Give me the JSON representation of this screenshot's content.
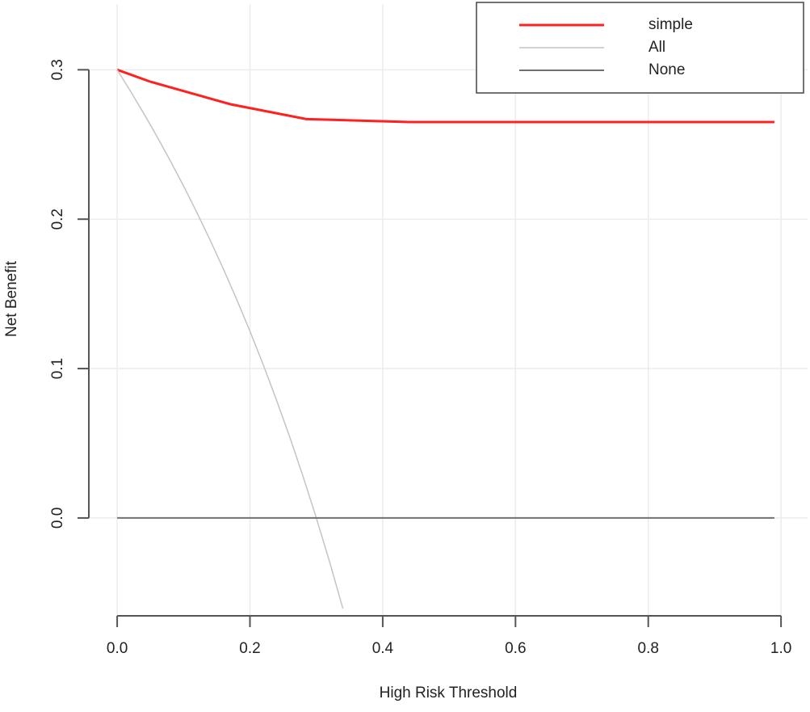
{
  "chart_data": {
    "type": "line",
    "xlabel": "High Risk Threshold",
    "ylabel": "Net Benefit",
    "xlim": [
      -0.05,
      1.04
    ],
    "ylim": [
      -0.0655,
      0.344
    ],
    "xticks": [
      {
        "value": 0,
        "label": "0.0"
      },
      0.2,
      0.4,
      0.6,
      0.8,
      {
        "value": 1,
        "label": "1.0"
      }
    ],
    "yticks": [
      {
        "value": 0,
        "label": "0.0"
      },
      0.1,
      0.2,
      0.3
    ],
    "grid": true,
    "legend": "top-right",
    "series": [
      {
        "name": "simple",
        "color": "#ff2020",
        "x": [
          0,
          0.05,
          0.17,
          0.285,
          0.44,
          0.99
        ],
        "values": [
          0.3,
          0.292,
          0.277,
          0.267,
          0.265,
          0.265
        ]
      },
      {
        "name": "All",
        "color": "#c4c4c4",
        "x": [
          0,
          0.02,
          0.04,
          0.06,
          0.08,
          0.1,
          0.12,
          0.14,
          0.16,
          0.18,
          0.2,
          0.22,
          0.24,
          0.26,
          0.28,
          0.3,
          0.32,
          0.34
        ],
        "values": [
          0.3,
          0.2857,
          0.2708,
          0.2553,
          0.2391,
          0.2222,
          0.2045,
          0.186,
          0.1667,
          0.1463,
          0.125,
          0.1026,
          0.0789,
          0.0541,
          0.0278,
          0,
          -0.0294,
          -0.0606
        ]
      },
      {
        "name": "None",
        "color": "#707070",
        "x": [
          0,
          0.99
        ],
        "values": [
          0,
          0
        ]
      }
    ]
  }
}
